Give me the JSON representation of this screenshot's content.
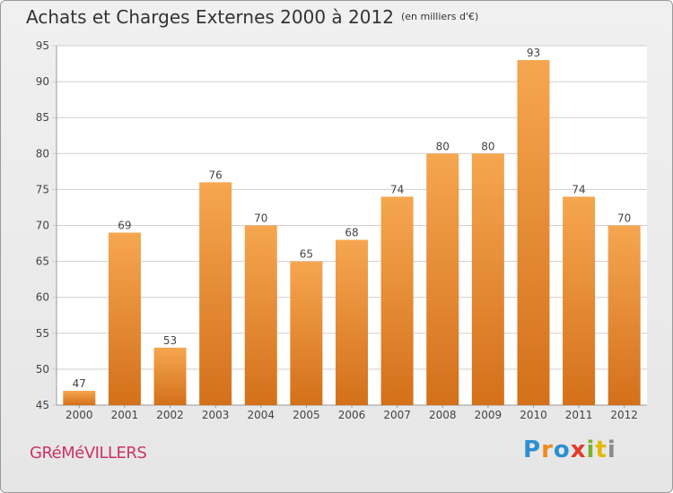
{
  "title": "Achats et Charges Externes 2000 à 2012",
  "subtitle": "(en milliers d'€)",
  "commune": "GRéMéVILLERS",
  "logo": {
    "text": "Proxiti"
  },
  "colors": {
    "bar_light": "#f6a650",
    "bar_dark": "#d4701a",
    "commune": "#cc3366",
    "logo_letters": [
      "#2e8fd0",
      "#f08a1c",
      "#2e8fd0",
      "#e63a2a",
      "#7ab32e",
      "#e6b800",
      "#8a8a8a"
    ]
  },
  "chart_data": {
    "type": "bar",
    "title": "Achats et Charges Externes 2000 à 2012",
    "subtitle": "(en milliers d'€)",
    "xlabel": "",
    "ylabel": "",
    "categories": [
      "2000",
      "2001",
      "2002",
      "2003",
      "2004",
      "2005",
      "2006",
      "2007",
      "2008",
      "2009",
      "2010",
      "2011",
      "2012"
    ],
    "values": [
      47,
      69,
      53,
      76,
      70,
      65,
      68,
      74,
      80,
      80,
      93,
      74,
      70
    ],
    "data_labels": [
      "47",
      "69",
      "53",
      "76",
      "70",
      "65",
      "68",
      "74",
      "80",
      "80",
      "93",
      "74",
      "70"
    ],
    "ylim": [
      45,
      95
    ],
    "yticks": [
      45,
      50,
      55,
      60,
      65,
      70,
      75,
      80,
      85,
      90,
      95
    ],
    "grid": true,
    "legend": "none"
  }
}
